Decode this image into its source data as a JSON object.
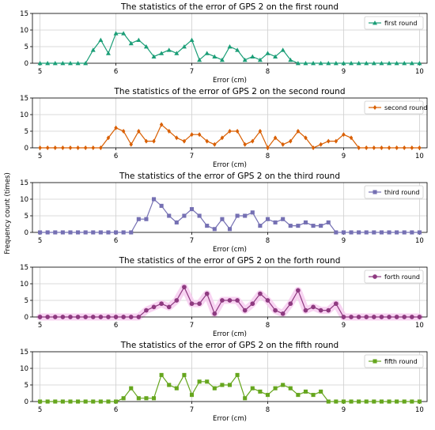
{
  "figure": {
    "shared_ylabel": "Frequency count (times)"
  },
  "chart_data": [
    {
      "type": "line",
      "title": "The statistics of the error of GPS 2 on the first round",
      "xlabel": "Error (cm)",
      "ylabel": "",
      "xlim": [
        4.9,
        10.1
      ],
      "ylim": [
        0,
        15
      ],
      "xticks": [
        5,
        6,
        7,
        8,
        9,
        10
      ],
      "yticks": [
        0,
        5,
        10,
        15
      ],
      "grid": true,
      "legend_position": "top-right",
      "marker": "triangle",
      "color": "#1b9e77",
      "x": [
        5.0,
        5.1,
        5.2,
        5.3,
        5.4,
        5.5,
        5.6,
        5.7,
        5.8,
        5.9,
        6.0,
        6.1,
        6.2,
        6.3,
        6.4,
        6.5,
        6.6,
        6.7,
        6.8,
        6.9,
        7.0,
        7.1,
        7.2,
        7.3,
        7.4,
        7.5,
        7.6,
        7.7,
        7.8,
        7.9,
        8.0,
        8.1,
        8.2,
        8.3,
        8.4,
        8.5,
        8.6,
        8.7,
        8.8,
        8.9,
        9.0,
        9.1,
        9.2,
        9.3,
        9.4,
        9.5,
        9.6,
        9.7,
        9.8,
        9.9,
        10.0
      ],
      "series": [
        {
          "name": "first round",
          "values": [
            0,
            0,
            0,
            0,
            0,
            0,
            0,
            4,
            7,
            3,
            9,
            9,
            6,
            7,
            5,
            2,
            3,
            4,
            3,
            5,
            7,
            1,
            3,
            2,
            1,
            5,
            4,
            1,
            2,
            1,
            3,
            2,
            4,
            1,
            0,
            0,
            0,
            0,
            0,
            0,
            0,
            0,
            0,
            0,
            0,
            0,
            0,
            0,
            0,
            0,
            0
          ]
        }
      ]
    },
    {
      "type": "line",
      "title": "The statistics of the error of GPS 2 on the second round",
      "xlabel": "Error (cm)",
      "ylabel": "",
      "xlim": [
        4.9,
        10.1
      ],
      "ylim": [
        0,
        15
      ],
      "xticks": [
        5,
        6,
        7,
        8,
        9,
        10
      ],
      "yticks": [
        0,
        5,
        10,
        15
      ],
      "grid": true,
      "legend_position": "top-right",
      "marker": "diamond",
      "color": "#d95f02",
      "x": [
        5.0,
        5.1,
        5.2,
        5.3,
        5.4,
        5.5,
        5.6,
        5.7,
        5.8,
        5.9,
        6.0,
        6.1,
        6.2,
        6.3,
        6.4,
        6.5,
        6.6,
        6.7,
        6.8,
        6.9,
        7.0,
        7.1,
        7.2,
        7.3,
        7.4,
        7.5,
        7.6,
        7.7,
        7.8,
        7.9,
        8.0,
        8.1,
        8.2,
        8.3,
        8.4,
        8.5,
        8.6,
        8.7,
        8.8,
        8.9,
        9.0,
        9.1,
        9.2,
        9.3,
        9.4,
        9.5,
        9.6,
        9.7,
        9.8,
        9.9,
        10.0
      ],
      "series": [
        {
          "name": "second round",
          "values": [
            0,
            0,
            0,
            0,
            0,
            0,
            0,
            0,
            0,
            3,
            6,
            5,
            1,
            5,
            2,
            2,
            7,
            5,
            3,
            2,
            4,
            4,
            2,
            1,
            3,
            5,
            5,
            1,
            2,
            5,
            0,
            3,
            1,
            2,
            5,
            3,
            0,
            1,
            2,
            2,
            4,
            3,
            0,
            0,
            0,
            0,
            0,
            0,
            0,
            0,
            0
          ]
        }
      ]
    },
    {
      "type": "line",
      "title": "The statistics of the error of GPS 2 on the third round",
      "xlabel": "Error (cm)",
      "ylabel": "",
      "xlim": [
        4.9,
        10.1
      ],
      "ylim": [
        0,
        15
      ],
      "xticks": [
        5,
        6,
        7,
        8,
        9,
        10
      ],
      "yticks": [
        0,
        5,
        10,
        15
      ],
      "grid": true,
      "legend_position": "top-right",
      "marker": "square",
      "color": "#7570b3",
      "x": [
        5.0,
        5.1,
        5.2,
        5.3,
        5.4,
        5.5,
        5.6,
        5.7,
        5.8,
        5.9,
        6.0,
        6.1,
        6.2,
        6.3,
        6.4,
        6.5,
        6.6,
        6.7,
        6.8,
        6.9,
        7.0,
        7.1,
        7.2,
        7.3,
        7.4,
        7.5,
        7.6,
        7.7,
        7.8,
        7.9,
        8.0,
        8.1,
        8.2,
        8.3,
        8.4,
        8.5,
        8.6,
        8.7,
        8.8,
        8.9,
        9.0,
        9.1,
        9.2,
        9.3,
        9.4,
        9.5,
        9.6,
        9.7,
        9.8,
        9.9,
        10.0
      ],
      "series": [
        {
          "name": "third round",
          "values": [
            0,
            0,
            0,
            0,
            0,
            0,
            0,
            0,
            0,
            0,
            0,
            0,
            0,
            4,
            4,
            10,
            8,
            5,
            3,
            5,
            7,
            5,
            2,
            1,
            4,
            1,
            5,
            5,
            6,
            2,
            4,
            3,
            4,
            2,
            2,
            3,
            2,
            2,
            3,
            0,
            0,
            0,
            0,
            0,
            0,
            0,
            0,
            0,
            0,
            0,
            0
          ]
        }
      ]
    },
    {
      "type": "line",
      "title": "The statistics of the error of GPS 2 on the forth round",
      "xlabel": "Error (cm)",
      "ylabel": "",
      "xlim": [
        4.9,
        10.1
      ],
      "ylim": [
        0,
        15
      ],
      "xticks": [
        5,
        6,
        7,
        8,
        9,
        10
      ],
      "yticks": [
        0,
        5,
        10,
        15
      ],
      "grid": true,
      "legend_position": "top-right",
      "marker": "circle",
      "color": "#8e3a80",
      "x": [
        5.0,
        5.1,
        5.2,
        5.3,
        5.4,
        5.5,
        5.6,
        5.7,
        5.8,
        5.9,
        6.0,
        6.1,
        6.2,
        6.3,
        6.4,
        6.5,
        6.6,
        6.7,
        6.8,
        6.9,
        7.0,
        7.1,
        7.2,
        7.3,
        7.4,
        7.5,
        7.6,
        7.7,
        7.8,
        7.9,
        8.0,
        8.1,
        8.2,
        8.3,
        8.4,
        8.5,
        8.6,
        8.7,
        8.8,
        8.9,
        9.0,
        9.1,
        9.2,
        9.3,
        9.4,
        9.5,
        9.6,
        9.7,
        9.8,
        9.9,
        10.0
      ],
      "series": [
        {
          "name": "forth round",
          "values": [
            0,
            0,
            0,
            0,
            0,
            0,
            0,
            0,
            0,
            0,
            0,
            0,
            0,
            0,
            2,
            3,
            4,
            3,
            5,
            9,
            4,
            4,
            7,
            1,
            5,
            5,
            5,
            2,
            4,
            7,
            5,
            2,
            1,
            4,
            8,
            2,
            3,
            2,
            2,
            4,
            0,
            0,
            0,
            0,
            0,
            0,
            0,
            0,
            0,
            0,
            0
          ]
        }
      ]
    },
    {
      "type": "line",
      "title": "The statistics of the error of GPS 2 on the fifth round",
      "xlabel": "Error (cm)",
      "ylabel": "",
      "xlim": [
        4.9,
        10.1
      ],
      "ylim": [
        0,
        15
      ],
      "xticks": [
        5,
        6,
        7,
        8,
        9,
        10
      ],
      "yticks": [
        0,
        5,
        10,
        15
      ],
      "grid": true,
      "legend_position": "top-right",
      "marker": "square",
      "color": "#66a61e",
      "x": [
        5.0,
        5.1,
        5.2,
        5.3,
        5.4,
        5.5,
        5.6,
        5.7,
        5.8,
        5.9,
        6.0,
        6.1,
        6.2,
        6.3,
        6.4,
        6.5,
        6.6,
        6.7,
        6.8,
        6.9,
        7.0,
        7.1,
        7.2,
        7.3,
        7.4,
        7.5,
        7.6,
        7.7,
        7.8,
        7.9,
        8.0,
        8.1,
        8.2,
        8.3,
        8.4,
        8.5,
        8.6,
        8.7,
        8.8,
        8.9,
        9.0,
        9.1,
        9.2,
        9.3,
        9.4,
        9.5,
        9.6,
        9.7,
        9.8,
        9.9,
        10.0
      ],
      "series": [
        {
          "name": "fifth round",
          "values": [
            0,
            0,
            0,
            0,
            0,
            0,
            0,
            0,
            0,
            0,
            0,
            1,
            4,
            1,
            1,
            1,
            8,
            5,
            4,
            8,
            2,
            6,
            6,
            4,
            5,
            5,
            8,
            1,
            4,
            3,
            2,
            4,
            5,
            4,
            2,
            3,
            2,
            3,
            0,
            0,
            0,
            0,
            0,
            0,
            0,
            0,
            0,
            0,
            0,
            0,
            0
          ]
        }
      ]
    }
  ]
}
